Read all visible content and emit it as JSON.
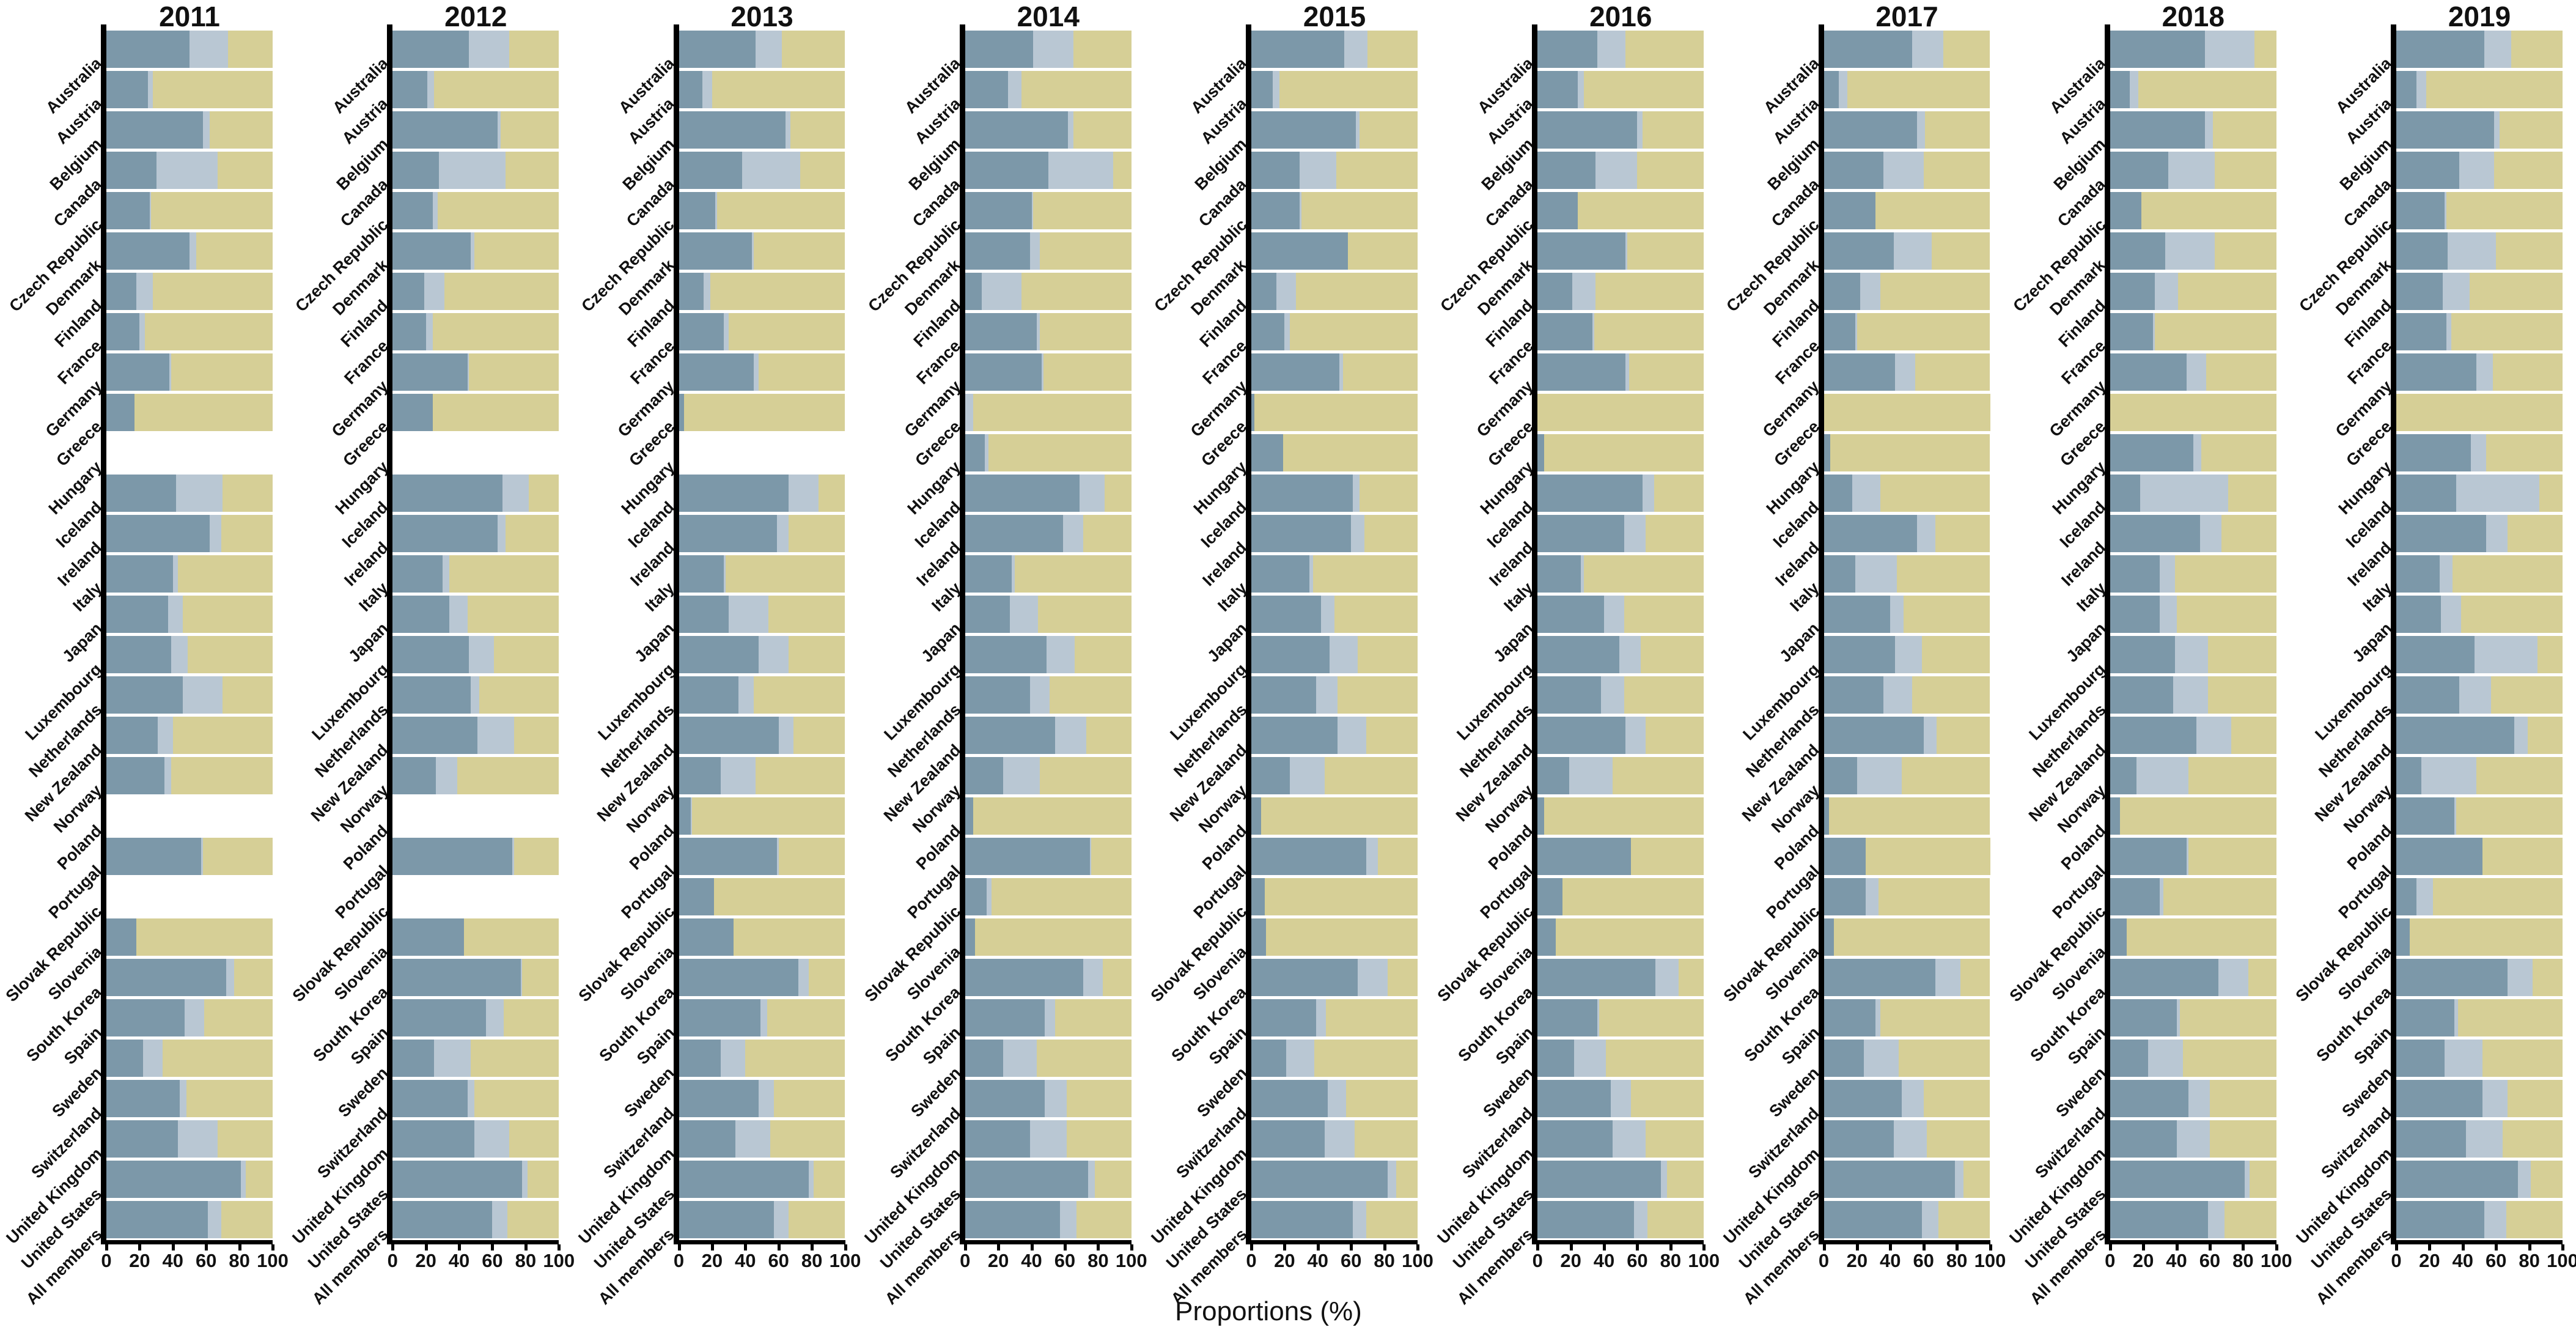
{
  "chart_data": {
    "type": "bar",
    "variant": "horizontal-stacked-percent-faceted",
    "xlabel": "Proportions (%)",
    "x_ticks": [
      0,
      20,
      40,
      60,
      80,
      100
    ],
    "xlim": [
      0,
      100
    ],
    "grid": "off",
    "legend": "none",
    "facet_years": [
      "2011",
      "2012",
      "2013",
      "2014",
      "2015",
      "2016",
      "2017",
      "2018",
      "2019"
    ],
    "categories": [
      "Australia",
      "Austria",
      "Belgium",
      "Canada",
      "Czech Republic",
      "Denmark",
      "Finland",
      "France",
      "Germany",
      "Greece",
      "Hungary",
      "Iceland",
      "Ireland",
      "Italy",
      "Japan",
      "Luxembourg",
      "Netherlands",
      "New Zealand",
      "Norway",
      "Poland",
      "Portugal",
      "Slovak Republic",
      "Slovenia",
      "South Korea",
      "Spain",
      "Sweden",
      "Switzerland",
      "United Kingdom",
      "United States",
      "All members"
    ],
    "segments": [
      {
        "name": "segment-dark-blue",
        "color": "#7C98A9"
      },
      {
        "name": "segment-light-blue",
        "color": "#B9C7D3"
      },
      {
        "name": "segment-khaki",
        "color": "#D6CF96"
      }
    ],
    "values_by_year": {
      "2011": [
        [
          50,
          23,
          27
        ],
        [
          25,
          3,
          72
        ],
        [
          58,
          4,
          38
        ],
        [
          30,
          37,
          33
        ],
        [
          26,
          1,
          73
        ],
        [
          50,
          4,
          46
        ],
        [
          18,
          10,
          72
        ],
        [
          20,
          3,
          77
        ],
        [
          38,
          1,
          61
        ],
        [
          17,
          0,
          83
        ],
        null,
        [
          42,
          28,
          30
        ],
        [
          62,
          7,
          31
        ],
        [
          40,
          3,
          57
        ],
        [
          37,
          9,
          54
        ],
        [
          39,
          10,
          51
        ],
        [
          46,
          24,
          30
        ],
        [
          31,
          9,
          60
        ],
        [
          35,
          4,
          61
        ],
        null,
        [
          57,
          1,
          42
        ],
        null,
        [
          18,
          0,
          82
        ],
        [
          72,
          5,
          23
        ],
        [
          47,
          12,
          41
        ],
        [
          22,
          12,
          66
        ],
        [
          44,
          4,
          52
        ],
        [
          43,
          24,
          33
        ],
        [
          81,
          3,
          16
        ],
        [
          61,
          8,
          31
        ]
      ],
      "2012": [
        [
          46,
          24,
          30
        ],
        [
          21,
          4,
          75
        ],
        [
          63,
          2,
          35
        ],
        [
          28,
          40,
          32
        ],
        [
          24,
          3,
          73
        ],
        [
          47,
          2,
          51
        ],
        [
          19,
          12,
          69
        ],
        [
          20,
          4,
          76
        ],
        [
          45,
          1,
          54
        ],
        [
          24,
          0,
          76
        ],
        null,
        [
          66,
          16,
          18
        ],
        [
          63,
          5,
          32
        ],
        [
          30,
          4,
          66
        ],
        [
          34,
          11,
          55
        ],
        [
          46,
          15,
          39
        ],
        [
          47,
          5,
          48
        ],
        [
          51,
          22,
          27
        ],
        [
          26,
          13,
          61
        ],
        null,
        [
          72,
          1,
          27
        ],
        null,
        [
          43,
          0,
          57
        ],
        [
          77,
          1,
          22
        ],
        [
          56,
          11,
          33
        ],
        [
          25,
          22,
          53
        ],
        [
          45,
          4,
          51
        ],
        [
          49,
          21,
          30
        ],
        [
          78,
          3,
          19
        ],
        [
          60,
          9,
          31
        ]
      ],
      "2013": [
        [
          46,
          16,
          38
        ],
        [
          14,
          6,
          80
        ],
        [
          64,
          3,
          33
        ],
        [
          38,
          35,
          27
        ],
        [
          22,
          1,
          77
        ],
        [
          44,
          1,
          55
        ],
        [
          15,
          4,
          81
        ],
        [
          27,
          3,
          70
        ],
        [
          45,
          3,
          52
        ],
        [
          3,
          0,
          97
        ],
        null,
        [
          66,
          18,
          16
        ],
        [
          59,
          7,
          34
        ],
        [
          27,
          1,
          72
        ],
        [
          30,
          24,
          46
        ],
        [
          48,
          18,
          34
        ],
        [
          36,
          9,
          55
        ],
        [
          60,
          9,
          31
        ],
        [
          25,
          21,
          54
        ],
        [
          7,
          1,
          92
        ],
        [
          59,
          1,
          40
        ],
        [
          21,
          0,
          79
        ],
        [
          33,
          0,
          67
        ],
        [
          72,
          6,
          22
        ],
        [
          49,
          4,
          47
        ],
        [
          25,
          15,
          60
        ],
        [
          48,
          9,
          43
        ],
        [
          34,
          21,
          45
        ],
        [
          78,
          3,
          19
        ],
        [
          57,
          9,
          34
        ]
      ],
      "2014": [
        [
          41,
          24,
          35
        ],
        [
          26,
          8,
          66
        ],
        [
          62,
          3,
          35
        ],
        [
          50,
          39,
          11
        ],
        [
          40,
          1,
          59
        ],
        [
          39,
          6,
          55
        ],
        [
          10,
          24,
          66
        ],
        [
          43,
          2,
          55
        ],
        [
          46,
          1,
          53
        ],
        [
          0,
          5,
          95
        ],
        [
          12,
          2,
          86
        ],
        [
          69,
          15,
          16
        ],
        [
          59,
          12,
          29
        ],
        [
          28,
          2,
          70
        ],
        [
          27,
          17,
          56
        ],
        [
          49,
          17,
          34
        ],
        [
          39,
          12,
          49
        ],
        [
          54,
          19,
          27
        ],
        [
          23,
          22,
          55
        ],
        [
          5,
          0,
          95
        ],
        [
          75,
          1,
          24
        ],
        [
          13,
          3,
          84
        ],
        [
          6,
          0,
          94
        ],
        [
          71,
          12,
          17
        ],
        [
          48,
          6,
          46
        ],
        [
          23,
          20,
          57
        ],
        [
          48,
          13,
          39
        ],
        [
          39,
          22,
          39
        ],
        [
          74,
          4,
          22
        ],
        [
          57,
          10,
          33
        ]
      ],
      "2015": [
        [
          56,
          14,
          30
        ],
        [
          13,
          4,
          83
        ],
        [
          63,
          2,
          35
        ],
        [
          29,
          22,
          49
        ],
        [
          29,
          1,
          70
        ],
        [
          58,
          0,
          42
        ],
        [
          15,
          12,
          73
        ],
        [
          20,
          3,
          77
        ],
        [
          53,
          2,
          45
        ],
        [
          2,
          0,
          98
        ],
        [
          19,
          0,
          81
        ],
        [
          61,
          4,
          35
        ],
        [
          60,
          8,
          32
        ],
        [
          35,
          2,
          63
        ],
        [
          42,
          8,
          50
        ],
        [
          47,
          17,
          36
        ],
        [
          39,
          13,
          48
        ],
        [
          52,
          17,
          31
        ],
        [
          23,
          21,
          56
        ],
        [
          6,
          0,
          94
        ],
        [
          69,
          7,
          24
        ],
        [
          8,
          0,
          92
        ],
        [
          9,
          0,
          91
        ],
        [
          64,
          18,
          18
        ],
        [
          39,
          6,
          55
        ],
        [
          21,
          17,
          62
        ],
        [
          46,
          11,
          43
        ],
        [
          44,
          18,
          38
        ],
        [
          82,
          5,
          13
        ],
        [
          61,
          8,
          31
        ]
      ],
      "2016": [
        [
          36,
          17,
          47
        ],
        [
          24,
          4,
          72
        ],
        [
          60,
          3,
          37
        ],
        [
          35,
          25,
          40
        ],
        [
          24,
          0,
          76
        ],
        [
          53,
          1,
          46
        ],
        [
          21,
          14,
          65
        ],
        [
          33,
          1,
          66
        ],
        [
          53,
          2,
          45
        ],
        [
          0,
          0,
          100
        ],
        [
          4,
          0,
          96
        ],
        [
          63,
          7,
          30
        ],
        [
          52,
          13,
          35
        ],
        [
          26,
          2,
          72
        ],
        [
          40,
          12,
          48
        ],
        [
          49,
          13,
          38
        ],
        [
          38,
          14,
          48
        ],
        [
          53,
          12,
          35
        ],
        [
          19,
          26,
          55
        ],
        [
          4,
          0,
          96
        ],
        [
          56,
          0,
          44
        ],
        [
          15,
          0,
          85
        ],
        [
          11,
          0,
          89
        ],
        [
          71,
          14,
          15
        ],
        [
          36,
          1,
          63
        ],
        [
          22,
          19,
          59
        ],
        [
          44,
          12,
          44
        ],
        [
          45,
          20,
          35
        ],
        [
          74,
          4,
          22
        ],
        [
          58,
          8,
          34
        ]
      ],
      "2017": [
        [
          53,
          19,
          28
        ],
        [
          9,
          5,
          86
        ],
        [
          56,
          5,
          39
        ],
        [
          36,
          24,
          40
        ],
        [
          31,
          0,
          69
        ],
        [
          42,
          23,
          35
        ],
        [
          22,
          12,
          66
        ],
        [
          19,
          1,
          80
        ],
        [
          43,
          12,
          45
        ],
        [
          0,
          0,
          100
        ],
        [
          4,
          0,
          96
        ],
        [
          17,
          17,
          66
        ],
        [
          56,
          11,
          33
        ],
        [
          19,
          25,
          56
        ],
        [
          40,
          8,
          52
        ],
        [
          43,
          16,
          41
        ],
        [
          36,
          17,
          47
        ],
        [
          60,
          8,
          32
        ],
        [
          20,
          27,
          53
        ],
        [
          3,
          0,
          97
        ],
        [
          25,
          0,
          75
        ],
        [
          25,
          8,
          67
        ],
        [
          6,
          0,
          94
        ],
        [
          67,
          15,
          18
        ],
        [
          31,
          3,
          66
        ],
        [
          24,
          21,
          55
        ],
        [
          47,
          13,
          40
        ],
        [
          42,
          20,
          38
        ],
        [
          79,
          5,
          16
        ],
        [
          59,
          10,
          31
        ]
      ],
      "2018": [
        [
          57,
          30,
          13
        ],
        [
          12,
          5,
          83
        ],
        [
          57,
          5,
          38
        ],
        [
          35,
          28,
          37
        ],
        [
          19,
          0,
          81
        ],
        [
          33,
          30,
          37
        ],
        [
          27,
          14,
          59
        ],
        [
          26,
          1,
          73
        ],
        [
          46,
          12,
          42
        ],
        [
          0,
          0,
          100
        ],
        [
          50,
          5,
          45
        ],
        [
          18,
          53,
          29
        ],
        [
          54,
          13,
          33
        ],
        [
          30,
          9,
          61
        ],
        [
          30,
          10,
          60
        ],
        [
          39,
          20,
          41
        ],
        [
          38,
          21,
          41
        ],
        [
          52,
          21,
          27
        ],
        [
          16,
          31,
          53
        ],
        [
          6,
          0,
          94
        ],
        [
          46,
          1,
          53
        ],
        [
          30,
          2,
          68
        ],
        [
          10,
          0,
          90
        ],
        [
          65,
          18,
          17
        ],
        [
          40,
          2,
          58
        ],
        [
          23,
          21,
          56
        ],
        [
          47,
          13,
          40
        ],
        [
          40,
          20,
          40
        ],
        [
          81,
          3,
          16
        ],
        [
          59,
          10,
          31
        ]
      ],
      "2019": [
        [
          53,
          16,
          31
        ],
        [
          12,
          6,
          82
        ],
        [
          59,
          3,
          38
        ],
        [
          38,
          21,
          41
        ],
        [
          29,
          1,
          70
        ],
        [
          31,
          29,
          40
        ],
        [
          28,
          16,
          56
        ],
        [
          30,
          3,
          67
        ],
        [
          48,
          10,
          42
        ],
        [
          0,
          0,
          100
        ],
        [
          45,
          9,
          46
        ],
        [
          36,
          50,
          14
        ],
        [
          54,
          13,
          33
        ],
        [
          26,
          8,
          66
        ],
        [
          27,
          12,
          61
        ],
        [
          47,
          38,
          15
        ],
        [
          38,
          19,
          43
        ],
        [
          71,
          8,
          21
        ],
        [
          15,
          33,
          52
        ],
        [
          35,
          1,
          64
        ],
        [
          52,
          0,
          48
        ],
        [
          12,
          10,
          78
        ],
        [
          8,
          0,
          92
        ],
        [
          67,
          15,
          18
        ],
        [
          35,
          2,
          63
        ],
        [
          29,
          23,
          48
        ],
        [
          52,
          15,
          33
        ],
        [
          42,
          22,
          36
        ],
        [
          73,
          8,
          19
        ],
        [
          53,
          13,
          34
        ]
      ]
    }
  }
}
